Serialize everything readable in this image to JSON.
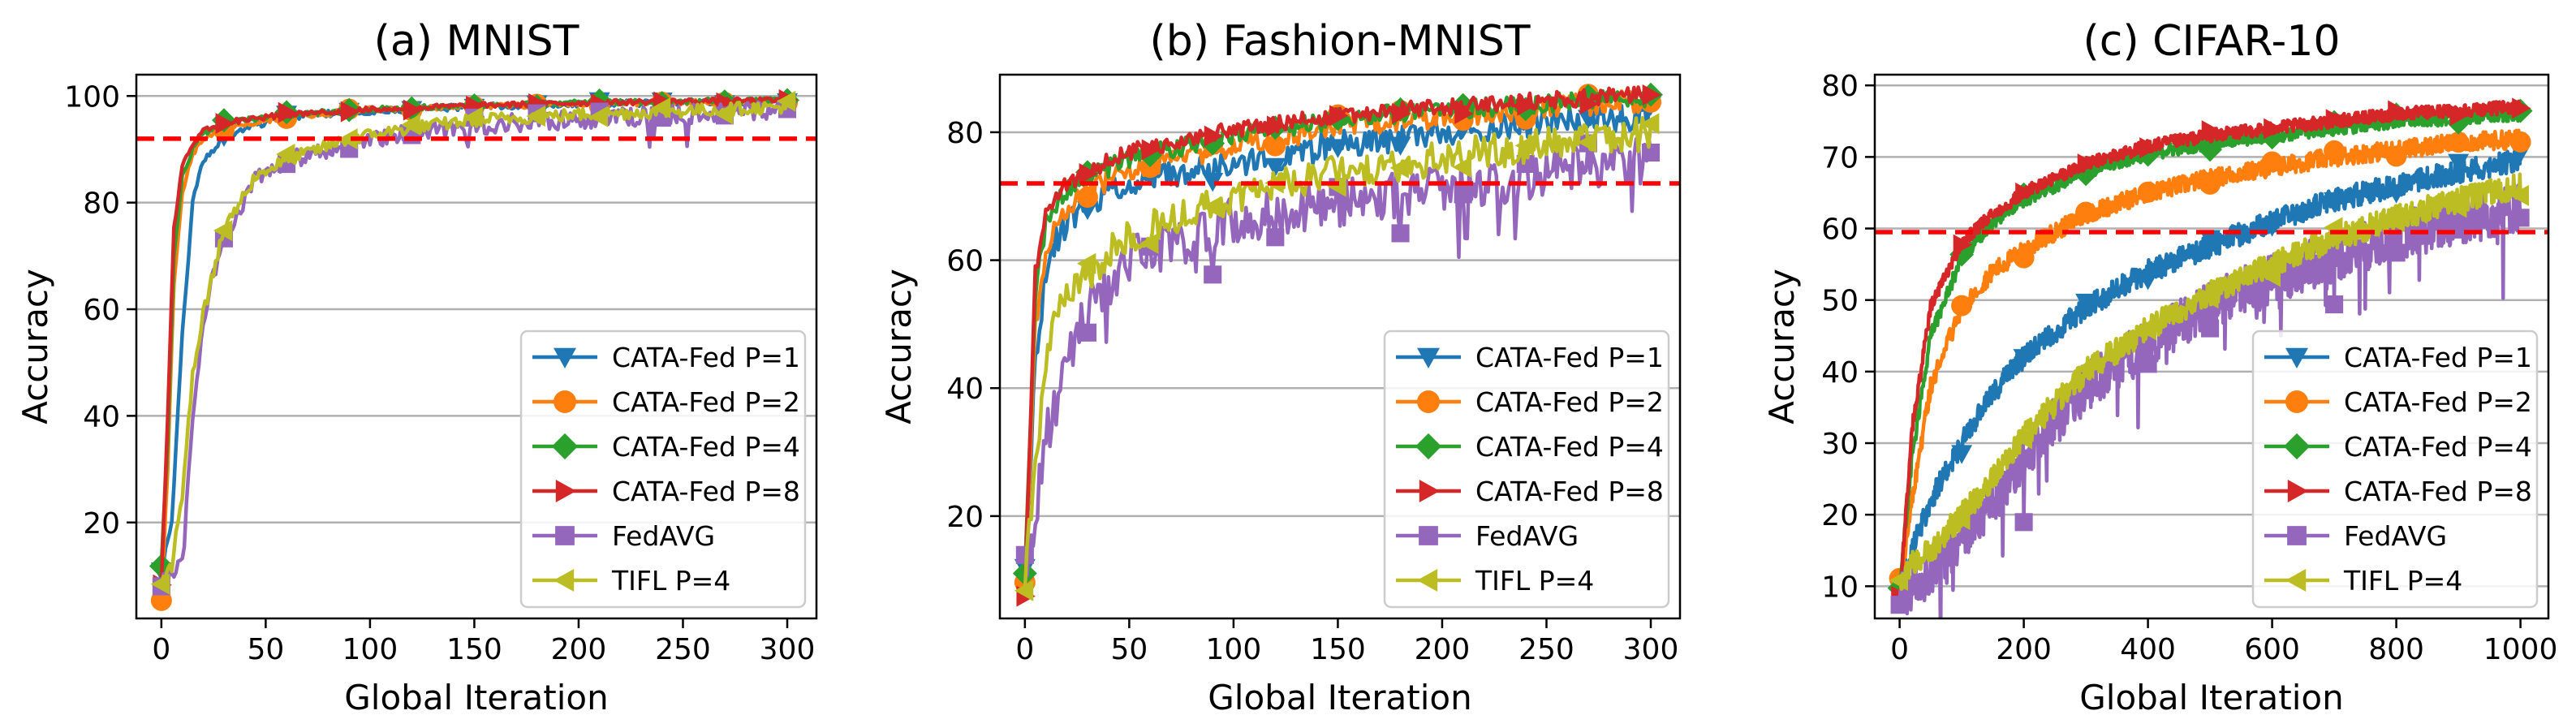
{
  "chart_data": [
    {
      "type": "line",
      "title": "(a) MNIST",
      "xlabel": "Global Iteration",
      "ylabel": "Accuracy",
      "xlim": [
        -12,
        314
      ],
      "ylim": [
        2,
        104
      ],
      "xticks": [
        0,
        50,
        100,
        150,
        200,
        250,
        300
      ],
      "yticks": [
        20,
        40,
        60,
        80,
        100
      ],
      "grid": "horizontal",
      "threshold": 92,
      "legend_position": "lower-right",
      "marker_every": 30,
      "series": [
        {
          "name": "CATA-Fed P=1",
          "color": "#1f77b4",
          "marker": "triangle-down",
          "x": [
            0,
            5,
            10,
            15,
            20,
            30,
            40,
            60,
            90,
            120,
            150,
            200,
            250,
            300
          ],
          "y": [
            11,
            20,
            55,
            80,
            88,
            92,
            94,
            96,
            97,
            97.5,
            98,
            98.5,
            98.8,
            99
          ],
          "noise": 0.6,
          "seed": 1
        },
        {
          "name": "CATA-Fed P=2",
          "color": "#ff7f0e",
          "marker": "circle",
          "x": [
            0,
            3,
            6,
            10,
            15,
            20,
            30,
            60,
            100,
            150,
            200,
            250,
            300
          ],
          "y": [
            5,
            30,
            65,
            82,
            89,
            92,
            94,
            96,
            97.5,
            98,
            98.5,
            98.8,
            99
          ],
          "noise": 0.5,
          "seed": 2
        },
        {
          "name": "CATA-Fed P=4",
          "color": "#2ca02c",
          "marker": "diamond",
          "x": [
            0,
            3,
            6,
            10,
            15,
            20,
            30,
            60,
            100,
            150,
            200,
            250,
            300
          ],
          "y": [
            12,
            35,
            70,
            85,
            90,
            93,
            95,
            96.5,
            97.5,
            98.2,
            98.7,
            99,
            99.2
          ],
          "noise": 0.5,
          "seed": 3
        },
        {
          "name": "CATA-Fed P=8",
          "color": "#d62728",
          "marker": "triangle-right",
          "x": [
            0,
            3,
            6,
            10,
            15,
            20,
            30,
            60,
            100,
            150,
            200,
            250,
            300
          ],
          "y": [
            8,
            40,
            75,
            87,
            91,
            93.5,
            95,
            96.5,
            97.5,
            98.2,
            98.7,
            99,
            99.2
          ],
          "noise": 0.5,
          "seed": 4
        },
        {
          "name": "FedAVG",
          "color": "#9467bd",
          "marker": "square",
          "x": [
            0,
            5,
            10,
            15,
            20,
            30,
            45,
            60,
            90,
            120,
            150,
            200,
            250,
            300
          ],
          "y": [
            9,
            10,
            14,
            40,
            58,
            74,
            84,
            88,
            91,
            93,
            94.5,
            95.5,
            96.5,
            97.5
          ],
          "noise": 1.8,
          "seed": 5
        },
        {
          "name": "TIFL P=4",
          "color": "#bcbd22",
          "marker": "triangle-left",
          "x": [
            0,
            5,
            10,
            15,
            20,
            30,
            45,
            60,
            90,
            120,
            150,
            200,
            250,
            300
          ],
          "y": [
            8,
            12,
            25,
            48,
            59,
            75,
            85,
            88,
            92,
            94,
            95.5,
            96.5,
            97.2,
            98
          ],
          "noise": 1.2,
          "seed": 6
        }
      ]
    },
    {
      "type": "line",
      "title": "(b) Fashion-MNIST",
      "xlabel": "Global Iteration",
      "ylabel": "Accuracy",
      "xlim": [
        -12,
        314
      ],
      "ylim": [
        4,
        89
      ],
      "xticks": [
        0,
        50,
        100,
        150,
        200,
        250,
        300
      ],
      "yticks": [
        20,
        40,
        60,
        80
      ],
      "grid": "horizontal",
      "threshold": 72,
      "legend_position": "lower-right",
      "marker_every": 30,
      "series": [
        {
          "name": "CATA-Fed P=1",
          "color": "#1f77b4",
          "marker": "triangle-down",
          "x": [
            0,
            5,
            10,
            15,
            20,
            30,
            50,
            100,
            150,
            200,
            250,
            300
          ],
          "y": [
            10,
            45,
            58,
            63,
            66,
            69,
            72,
            75,
            78,
            80,
            81.5,
            82.5
          ],
          "noise": 2.2,
          "seed": 11
        },
        {
          "name": "CATA-Fed P=2",
          "color": "#ff7f0e",
          "marker": "circle",
          "x": [
            0,
            5,
            10,
            15,
            20,
            30,
            50,
            100,
            150,
            200,
            250,
            300
          ],
          "y": [
            10,
            50,
            62,
            66,
            68,
            71,
            74,
            78,
            81,
            82.5,
            84,
            85
          ],
          "noise": 1.8,
          "seed": 12
        },
        {
          "name": "CATA-Fed P=4",
          "color": "#2ca02c",
          "marker": "diamond",
          "x": [
            0,
            5,
            10,
            15,
            20,
            30,
            50,
            100,
            150,
            200,
            250,
            300
          ],
          "y": [
            10,
            55,
            66,
            69,
            71,
            73,
            76,
            79.5,
            82,
            83.5,
            84.5,
            85.5
          ],
          "noise": 1.5,
          "seed": 13
        },
        {
          "name": "CATA-Fed P=8",
          "color": "#d62728",
          "marker": "triangle-right",
          "x": [
            0,
            5,
            10,
            15,
            20,
            30,
            50,
            100,
            150,
            200,
            250,
            300
          ],
          "y": [
            8,
            58,
            68,
            70,
            72,
            74,
            77,
            80.5,
            82.5,
            84,
            85,
            86
          ],
          "noise": 1.3,
          "seed": 14
        },
        {
          "name": "FedAVG",
          "color": "#9467bd",
          "marker": "square",
          "x": [
            0,
            5,
            10,
            15,
            20,
            30,
            50,
            100,
            150,
            200,
            250,
            300
          ],
          "y": [
            12,
            20,
            32,
            38,
            45,
            52,
            60,
            66,
            69,
            71,
            73.5,
            76
          ],
          "noise": 3.8,
          "seed": 15
        },
        {
          "name": "TIFL P=4",
          "color": "#bcbd22",
          "marker": "triangle-left",
          "x": [
            0,
            5,
            10,
            15,
            20,
            30,
            50,
            100,
            150,
            200,
            250,
            300
          ],
          "y": [
            10,
            28,
            45,
            52,
            55,
            58,
            64,
            70,
            74,
            76,
            78,
            80
          ],
          "noise": 2.8,
          "seed": 16
        }
      ]
    },
    {
      "type": "line",
      "title": "(c) CIFAR-10",
      "xlabel": "Global Iteration",
      "ylabel": "Accuracy",
      "xlim": [
        -40,
        1045
      ],
      "ylim": [
        5.5,
        81.5
      ],
      "xticks": [
        0,
        200,
        400,
        600,
        800,
        1000
      ],
      "yticks": [
        10,
        20,
        30,
        40,
        50,
        60,
        70,
        80
      ],
      "grid": "horizontal",
      "threshold": 59.5,
      "legend_position": "lower-right",
      "marker_every": 100,
      "series": [
        {
          "name": "CATA-Fed P=1",
          "color": "#1f77b4",
          "marker": "triangle-down",
          "x": [
            0,
            20,
            50,
            100,
            150,
            200,
            300,
            400,
            500,
            600,
            700,
            800,
            900,
            1000
          ],
          "y": [
            10,
            15,
            22,
            30,
            37,
            42,
            49,
            54,
            57.5,
            61,
            64,
            66,
            68,
            69.5
          ],
          "noise": 1.6,
          "seed": 21
        },
        {
          "name": "CATA-Fed P=2",
          "color": "#ff7f0e",
          "marker": "circle",
          "x": [
            0,
            20,
            50,
            100,
            150,
            200,
            300,
            400,
            500,
            600,
            700,
            800,
            900,
            1000
          ],
          "y": [
            10,
            22,
            38,
            49,
            54,
            57,
            62,
            65,
            67,
            68.5,
            70,
            71,
            72,
            72.5
          ],
          "noise": 1.3,
          "seed": 22
        },
        {
          "name": "CATA-Fed P=4",
          "color": "#2ca02c",
          "marker": "diamond",
          "x": [
            0,
            20,
            50,
            100,
            150,
            200,
            300,
            400,
            500,
            600,
            700,
            800,
            900,
            1000
          ],
          "y": [
            10,
            28,
            45,
            56,
            61,
            64,
            68,
            70.5,
            72,
            73,
            74,
            75,
            75.5,
            76
          ],
          "noise": 1.0,
          "seed": 23
        },
        {
          "name": "CATA-Fed P=8",
          "color": "#d62728",
          "marker": "triangle-right",
          "x": [
            0,
            20,
            50,
            100,
            150,
            200,
            300,
            400,
            500,
            600,
            700,
            800,
            900,
            1000
          ],
          "y": [
            8,
            32,
            49,
            58,
            62,
            65,
            69,
            71.5,
            73,
            74,
            75,
            76,
            76.5,
            77
          ],
          "noise": 0.9,
          "seed": 24
        },
        {
          "name": "FedAVG",
          "color": "#9467bd",
          "marker": "square",
          "x": [
            0,
            20,
            50,
            100,
            150,
            200,
            300,
            400,
            500,
            600,
            700,
            800,
            900,
            1000
          ],
          "y": [
            9,
            10,
            12,
            17,
            22,
            28,
            38,
            44,
            49,
            53,
            56,
            59,
            61,
            63
          ],
          "noise": 3.5,
          "seed": 25
        },
        {
          "name": "TIFL P=4",
          "color": "#bcbd22",
          "marker": "triangle-left",
          "x": [
            0,
            20,
            50,
            100,
            150,
            200,
            300,
            400,
            500,
            600,
            700,
            800,
            900,
            1000
          ],
          "y": [
            10,
            13,
            15,
            20,
            25,
            31,
            40,
            46,
            51,
            55,
            58.5,
            61.5,
            64,
            66
          ],
          "noise": 1.8,
          "seed": 26
        }
      ]
    }
  ]
}
